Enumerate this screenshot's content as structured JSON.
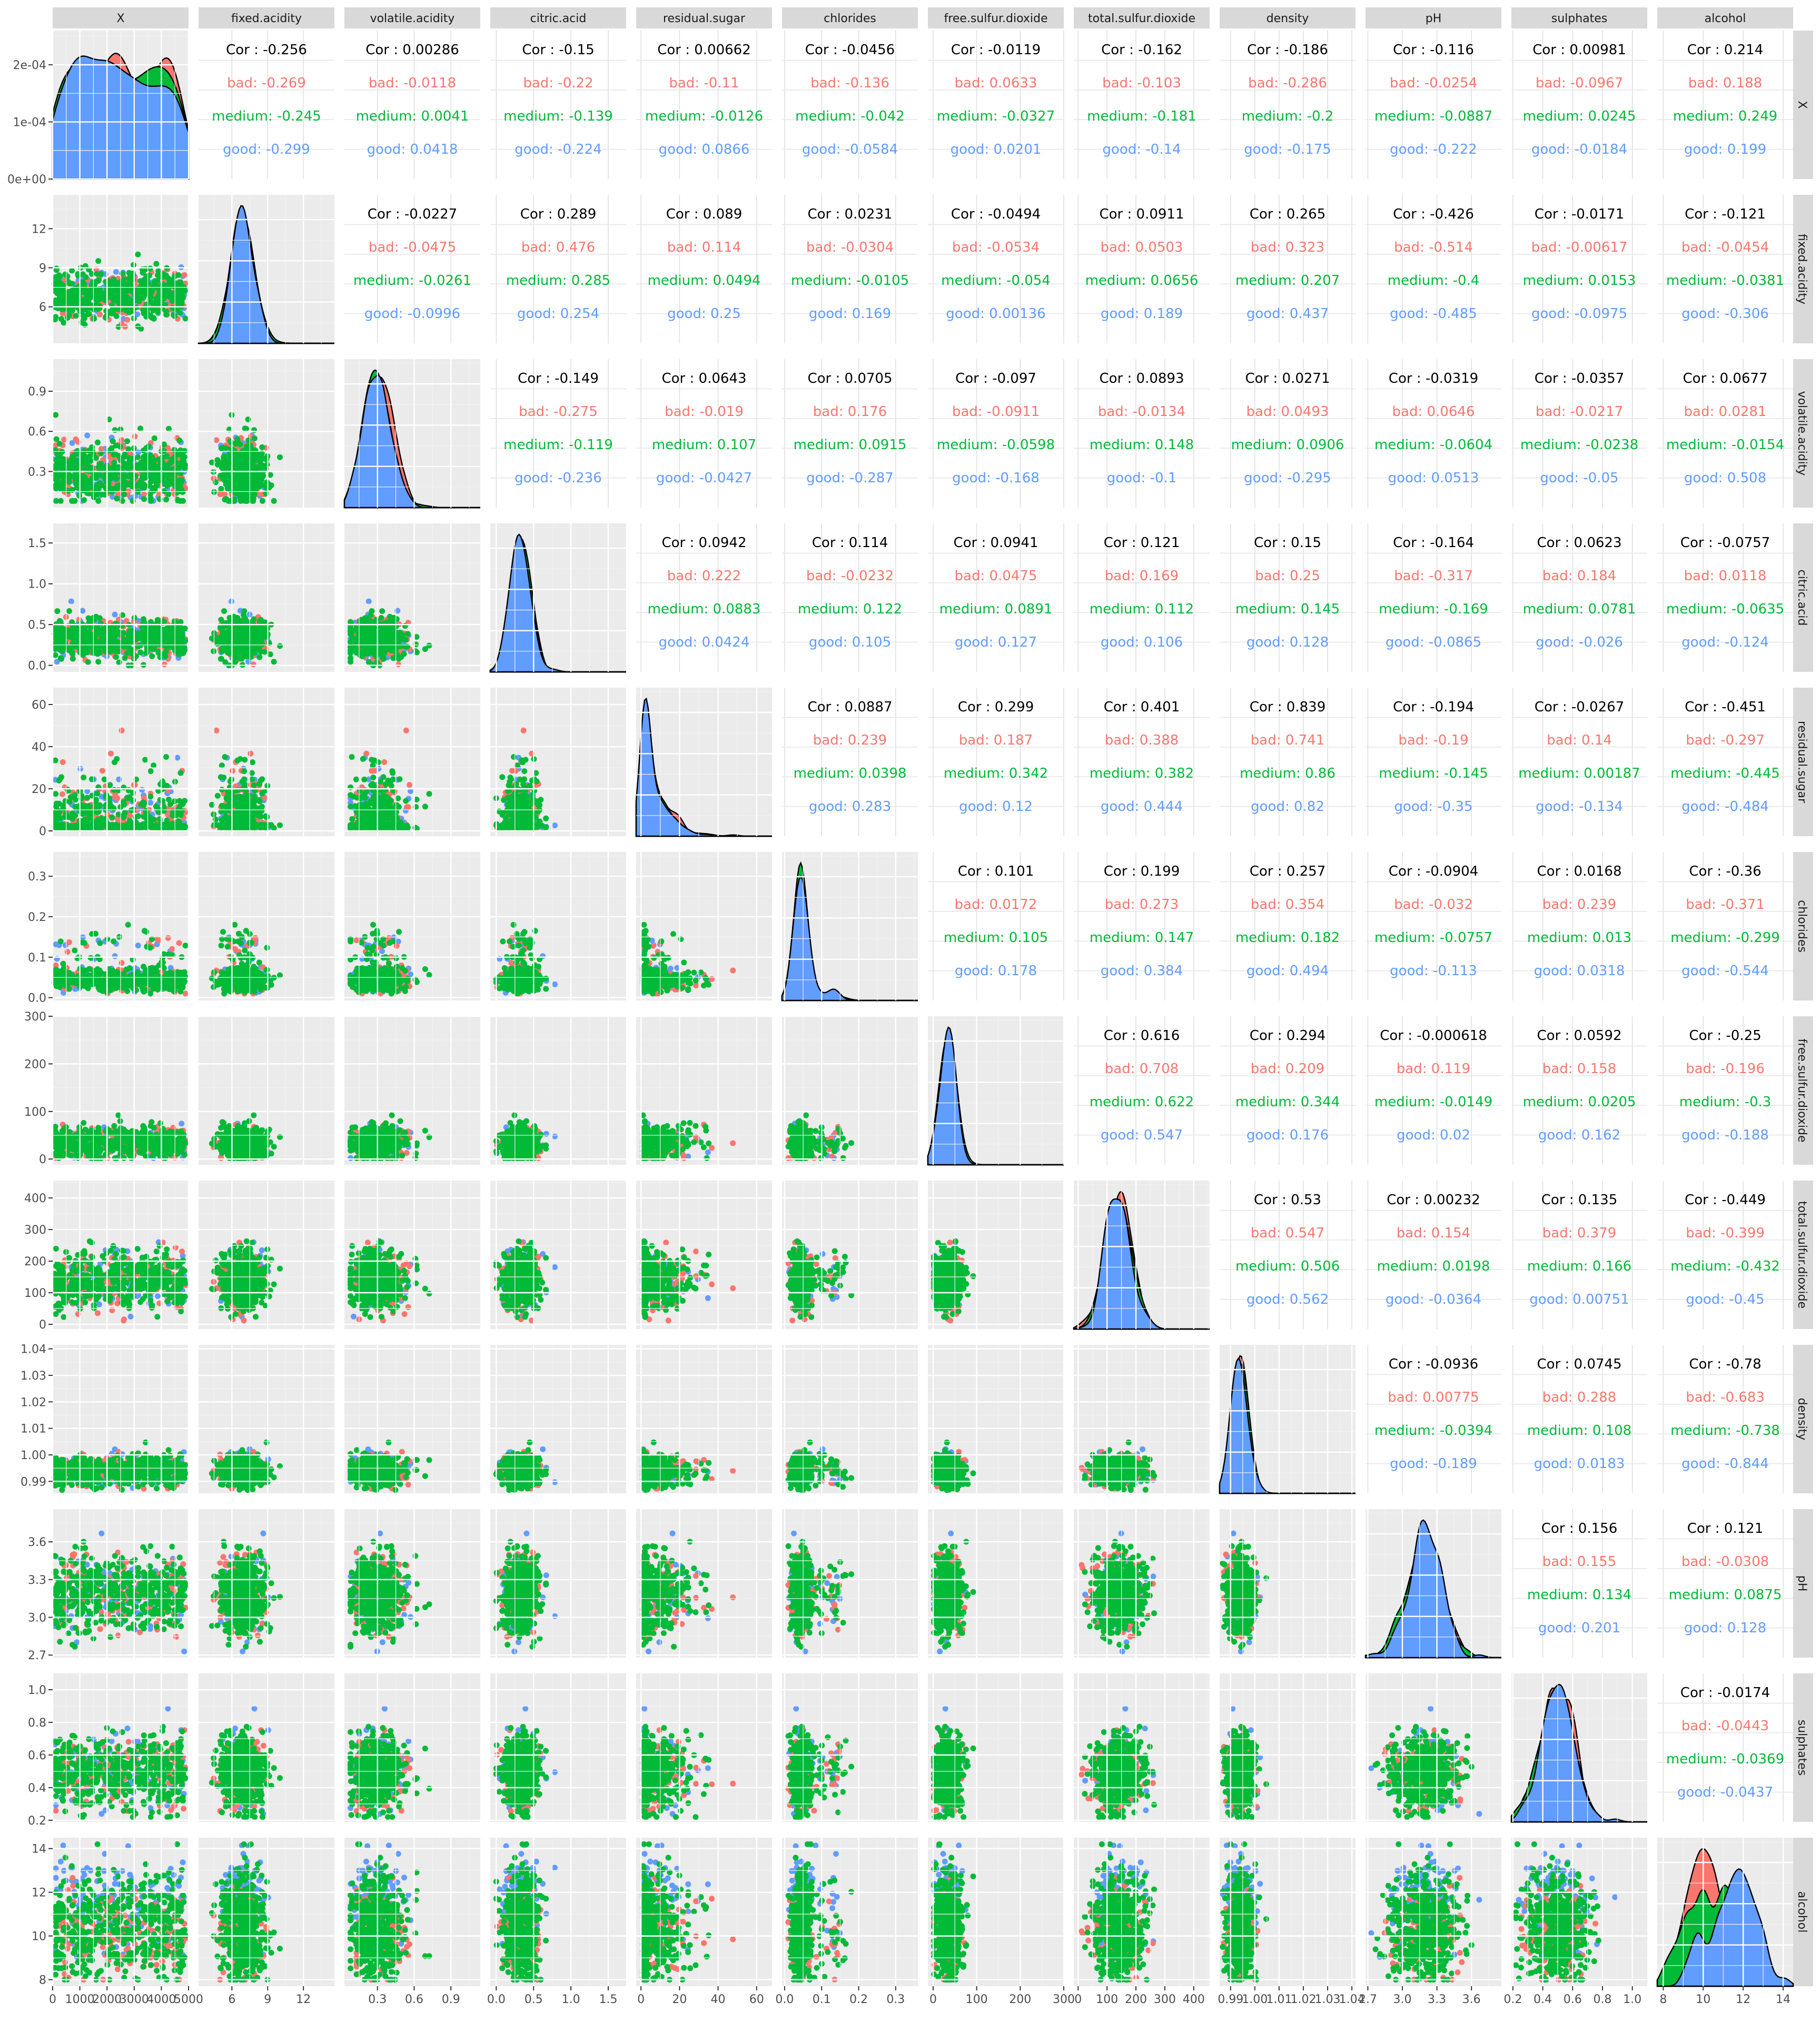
{
  "chart_data": {
    "type": "scatter",
    "subtype": "pairs-matrix",
    "variables": [
      "X",
      "fixed.acidity",
      "volatile.acidity",
      "citric.acid",
      "residual.sugar",
      "chlorides",
      "free.sulfur.dioxide",
      "total.sulfur.dioxide",
      "density",
      "pH",
      "sulphates",
      "alcohol"
    ],
    "groups": [
      {
        "name": "bad",
        "color": "#F8766D"
      },
      {
        "name": "medium",
        "color": "#00BA38"
      },
      {
        "name": "good",
        "color": "#619CFF"
      }
    ],
    "correlation_prefixes": [
      "Cor : ",
      "bad: ",
      "medium: ",
      "good: "
    ],
    "correlations": [
      {
        "row": "X",
        "col": "fixed.acidity",
        "overall": "-0.256",
        "bad": "-0.269",
        "medium": "-0.245",
        "good": "-0.299"
      },
      {
        "row": "X",
        "col": "volatile.acidity",
        "overall": "0.00286",
        "bad": "-0.0118",
        "medium": "0.0041",
        "good": "0.0418"
      },
      {
        "row": "X",
        "col": "citric.acid",
        "overall": "-0.15",
        "bad": "-0.22",
        "medium": "-0.139",
        "good": "-0.224"
      },
      {
        "row": "X",
        "col": "residual.sugar",
        "overall": "0.00662",
        "bad": "-0.11",
        "medium": "-0.0126",
        "good": "0.0866"
      },
      {
        "row": "X",
        "col": "chlorides",
        "overall": "-0.0456",
        "bad": "-0.136",
        "medium": "-0.042",
        "good": "-0.0584"
      },
      {
        "row": "X",
        "col": "free.sulfur.dioxide",
        "overall": "-0.0119",
        "bad": "0.0633",
        "medium": "-0.0327",
        "good": "0.0201"
      },
      {
        "row": "X",
        "col": "total.sulfur.dioxide",
        "overall": "-0.162",
        "bad": "-0.103",
        "medium": "-0.181",
        "good": "-0.14"
      },
      {
        "row": "X",
        "col": "density",
        "overall": "-0.186",
        "bad": "-0.286",
        "medium": "-0.2",
        "good": "-0.175"
      },
      {
        "row": "X",
        "col": "pH",
        "overall": "-0.116",
        "bad": "-0.0254",
        "medium": "-0.0887",
        "good": "-0.222"
      },
      {
        "row": "X",
        "col": "sulphates",
        "overall": "0.00981",
        "bad": "-0.0967",
        "medium": "0.0245",
        "good": "-0.0184"
      },
      {
        "row": "X",
        "col": "alcohol",
        "overall": "0.214",
        "bad": "0.188",
        "medium": "0.249",
        "good": "0.199"
      },
      {
        "row": "fixed.acidity",
        "col": "volatile.acidity",
        "overall": "-0.0227",
        "bad": "-0.0475",
        "medium": "-0.0261",
        "good": "-0.0996"
      },
      {
        "row": "fixed.acidity",
        "col": "citric.acid",
        "overall": "0.289",
        "bad": "0.476",
        "medium": "0.285",
        "good": "0.254"
      },
      {
        "row": "fixed.acidity",
        "col": "residual.sugar",
        "overall": "0.089",
        "bad": "0.114",
        "medium": "0.0494",
        "good": "0.25"
      },
      {
        "row": "fixed.acidity",
        "col": "chlorides",
        "overall": "0.0231",
        "bad": "-0.0304",
        "medium": "-0.0105",
        "good": "0.169"
      },
      {
        "row": "fixed.acidity",
        "col": "free.sulfur.dioxide",
        "overall": "-0.0494",
        "bad": "-0.0534",
        "medium": "-0.054",
        "good": "0.00136"
      },
      {
        "row": "fixed.acidity",
        "col": "total.sulfur.dioxide",
        "overall": "0.0911",
        "bad": "0.0503",
        "medium": "0.0656",
        "good": "0.189"
      },
      {
        "row": "fixed.acidity",
        "col": "density",
        "overall": "0.265",
        "bad": "0.323",
        "medium": "0.207",
        "good": "0.437"
      },
      {
        "row": "fixed.acidity",
        "col": "pH",
        "overall": "-0.426",
        "bad": "-0.514",
        "medium": "-0.4",
        "good": "-0.485"
      },
      {
        "row": "fixed.acidity",
        "col": "sulphates",
        "overall": "-0.0171",
        "bad": "-0.00617",
        "medium": "0.0153",
        "good": "-0.0975"
      },
      {
        "row": "fixed.acidity",
        "col": "alcohol",
        "overall": "-0.121",
        "bad": "-0.0454",
        "medium": "-0.0381",
        "good": "-0.306"
      },
      {
        "row": "volatile.acidity",
        "col": "citric.acid",
        "overall": "-0.149",
        "bad": "-0.275",
        "medium": "-0.119",
        "good": "-0.236"
      },
      {
        "row": "volatile.acidity",
        "col": "residual.sugar",
        "overall": "0.0643",
        "bad": "-0.019",
        "medium": "0.107",
        "good": "-0.0427"
      },
      {
        "row": "volatile.acidity",
        "col": "chlorides",
        "overall": "0.0705",
        "bad": "0.176",
        "medium": "0.0915",
        "good": "-0.287"
      },
      {
        "row": "volatile.acidity",
        "col": "free.sulfur.dioxide",
        "overall": "-0.097",
        "bad": "-0.0911",
        "medium": "-0.0598",
        "good": "-0.168"
      },
      {
        "row": "volatile.acidity",
        "col": "total.sulfur.dioxide",
        "overall": "0.0893",
        "bad": "-0.0134",
        "medium": "0.148",
        "good": "-0.1"
      },
      {
        "row": "volatile.acidity",
        "col": "density",
        "overall": "0.0271",
        "bad": "0.0493",
        "medium": "0.0906",
        "good": "-0.295"
      },
      {
        "row": "volatile.acidity",
        "col": "pH",
        "overall": "-0.0319",
        "bad": "0.0646",
        "medium": "-0.0604",
        "good": "0.0513"
      },
      {
        "row": "volatile.acidity",
        "col": "sulphates",
        "overall": "-0.0357",
        "bad": "-0.0217",
        "medium": "-0.0238",
        "good": "-0.05"
      },
      {
        "row": "volatile.acidity",
        "col": "alcohol",
        "overall": "0.0677",
        "bad": "0.0281",
        "medium": "-0.0154",
        "good": "0.508"
      },
      {
        "row": "citric.acid",
        "col": "residual.sugar",
        "overall": "0.0942",
        "bad": "0.222",
        "medium": "0.0883",
        "good": "0.0424"
      },
      {
        "row": "citric.acid",
        "col": "chlorides",
        "overall": "0.114",
        "bad": "-0.0232",
        "medium": "0.122",
        "good": "0.105"
      },
      {
        "row": "citric.acid",
        "col": "free.sulfur.dioxide",
        "overall": "0.0941",
        "bad": "0.0475",
        "medium": "0.0891",
        "good": "0.127"
      },
      {
        "row": "citric.acid",
        "col": "total.sulfur.dioxide",
        "overall": "0.121",
        "bad": "0.169",
        "medium": "0.112",
        "good": "0.106"
      },
      {
        "row": "citric.acid",
        "col": "density",
        "overall": "0.15",
        "bad": "0.25",
        "medium": "0.145",
        "good": "0.128"
      },
      {
        "row": "citric.acid",
        "col": "pH",
        "overall": "-0.164",
        "bad": "-0.317",
        "medium": "-0.169",
        "good": "-0.0865"
      },
      {
        "row": "citric.acid",
        "col": "sulphates",
        "overall": "0.0623",
        "bad": "0.184",
        "medium": "0.0781",
        "good": "-0.026"
      },
      {
        "row": "citric.acid",
        "col": "alcohol",
        "overall": "-0.0757",
        "bad": "0.0118",
        "medium": "-0.0635",
        "good": "-0.124"
      },
      {
        "row": "residual.sugar",
        "col": "chlorides",
        "overall": "0.0887",
        "bad": "0.239",
        "medium": "0.0398",
        "good": "0.283"
      },
      {
        "row": "residual.sugar",
        "col": "free.sulfur.dioxide",
        "overall": "0.299",
        "bad": "0.187",
        "medium": "0.342",
        "good": "0.12"
      },
      {
        "row": "residual.sugar",
        "col": "total.sulfur.dioxide",
        "overall": "0.401",
        "bad": "0.388",
        "medium": "0.382",
        "good": "0.444"
      },
      {
        "row": "residual.sugar",
        "col": "density",
        "overall": "0.839",
        "bad": "0.741",
        "medium": "0.86",
        "good": "0.82"
      },
      {
        "row": "residual.sugar",
        "col": "pH",
        "overall": "-0.194",
        "bad": "-0.19",
        "medium": "-0.145",
        "good": "-0.35"
      },
      {
        "row": "residual.sugar",
        "col": "sulphates",
        "overall": "-0.0267",
        "bad": "0.14",
        "medium": "0.00187",
        "good": "-0.134"
      },
      {
        "row": "residual.sugar",
        "col": "alcohol",
        "overall": "-0.451",
        "bad": "-0.297",
        "medium": "-0.445",
        "good": "-0.484"
      },
      {
        "row": "chlorides",
        "col": "free.sulfur.dioxide",
        "overall": "0.101",
        "bad": "0.0172",
        "medium": "0.105",
        "good": "0.178"
      },
      {
        "row": "chlorides",
        "col": "total.sulfur.dioxide",
        "overall": "0.199",
        "bad": "0.273",
        "medium": "0.147",
        "good": "0.384"
      },
      {
        "row": "chlorides",
        "col": "density",
        "overall": "0.257",
        "bad": "0.354",
        "medium": "0.182",
        "good": "0.494"
      },
      {
        "row": "chlorides",
        "col": "pH",
        "overall": "-0.0904",
        "bad": "-0.032",
        "medium": "-0.0757",
        "good": "-0.113"
      },
      {
        "row": "chlorides",
        "col": "sulphates",
        "overall": "0.0168",
        "bad": "0.239",
        "medium": "0.013",
        "good": "0.0318"
      },
      {
        "row": "chlorides",
        "col": "alcohol",
        "overall": "-0.36",
        "bad": "-0.371",
        "medium": "-0.299",
        "good": "-0.544"
      },
      {
        "row": "free.sulfur.dioxide",
        "col": "total.sulfur.dioxide",
        "overall": "0.616",
        "bad": "0.708",
        "medium": "0.622",
        "good": "0.547"
      },
      {
        "row": "free.sulfur.dioxide",
        "col": "density",
        "overall": "0.294",
        "bad": "0.209",
        "medium": "0.344",
        "good": "0.176"
      },
      {
        "row": "free.sulfur.dioxide",
        "col": "pH",
        "overall": "-0.000618",
        "bad": "0.119",
        "medium": "-0.0149",
        "good": "0.02"
      },
      {
        "row": "free.sulfur.dioxide",
        "col": "sulphates",
        "overall": "0.0592",
        "bad": "0.158",
        "medium": "0.0205",
        "good": "0.162"
      },
      {
        "row": "free.sulfur.dioxide",
        "col": "alcohol",
        "overall": "-0.25",
        "bad": "-0.196",
        "medium": "-0.3",
        "good": "-0.188"
      },
      {
        "row": "total.sulfur.dioxide",
        "col": "density",
        "overall": "0.53",
        "bad": "0.547",
        "medium": "0.506",
        "good": "0.562"
      },
      {
        "row": "total.sulfur.dioxide",
        "col": "pH",
        "overall": "0.00232",
        "bad": "0.154",
        "medium": "0.0198",
        "good": "-0.0364"
      },
      {
        "row": "total.sulfur.dioxide",
        "col": "sulphates",
        "overall": "0.135",
        "bad": "0.379",
        "medium": "0.166",
        "good": "0.00751"
      },
      {
        "row": "total.sulfur.dioxide",
        "col": "alcohol",
        "overall": "-0.449",
        "bad": "-0.399",
        "medium": "-0.432",
        "good": "-0.45"
      },
      {
        "row": "density",
        "col": "pH",
        "overall": "-0.0936",
        "bad": "0.00775",
        "medium": "-0.0394",
        "good": "-0.189"
      },
      {
        "row": "density",
        "col": "sulphates",
        "overall": "0.0745",
        "bad": "0.288",
        "medium": "0.108",
        "good": "0.0183"
      },
      {
        "row": "density",
        "col": "alcohol",
        "overall": "-0.78",
        "bad": "-0.683",
        "medium": "-0.738",
        "good": "-0.844"
      },
      {
        "row": "pH",
        "col": "sulphates",
        "overall": "0.156",
        "bad": "0.155",
        "medium": "0.134",
        "good": "0.201"
      },
      {
        "row": "pH",
        "col": "alcohol",
        "overall": "0.121",
        "bad": "-0.0308",
        "medium": "0.0875",
        "good": "0.128"
      },
      {
        "row": "sulphates",
        "col": "alcohol",
        "overall": "-0.0174",
        "bad": "-0.0443",
        "medium": "-0.0369",
        "good": "-0.0437"
      }
    ],
    "axes": {
      "X": {
        "range": [
          0,
          5000
        ],
        "ticks": [
          "0",
          "1000",
          "2000",
          "3000",
          "4000",
          "5000"
        ],
        "tick_values": [
          0,
          1000,
          2000,
          3000,
          4000,
          5000
        ],
        "density_ticks": [
          "0e+00",
          "1e-04",
          "2e-04"
        ],
        "density_tick_values": [
          0,
          0.0001,
          0.0002
        ],
        "density_ylim": [
          0,
          0.00026
        ]
      },
      "fixed.acidity": {
        "range": [
          3.2,
          14.6
        ],
        "ticks": [
          "6",
          "9",
          "12"
        ],
        "tick_values": [
          6,
          9,
          12
        ]
      },
      "volatile.acidity": {
        "range": [
          0.03,
          1.14
        ],
        "ticks": [
          "0.3",
          "0.6",
          "0.9"
        ],
        "tick_values": [
          0.3,
          0.6,
          0.9
        ]
      },
      "citric.acid": {
        "range": [
          -0.08,
          1.74
        ],
        "ticks": [
          "0.0",
          "0.5",
          "1.0",
          "1.5"
        ],
        "tick_values": [
          0,
          0.5,
          1.0,
          1.5
        ]
      },
      "residual.sugar": {
        "range": [
          -2.5,
          68
        ],
        "ticks": [
          "0",
          "20",
          "40",
          "60"
        ],
        "tick_values": [
          0,
          20,
          40,
          60
        ]
      },
      "chlorides": {
        "range": [
          -0.007,
          0.36
        ],
        "ticks": [
          "0.0",
          "0.1",
          "0.2",
          "0.3"
        ],
        "tick_values": [
          0,
          0.1,
          0.2,
          0.3
        ]
      },
      "free.sulfur.dioxide": {
        "range": [
          -12,
          300
        ],
        "ticks": [
          "0",
          "100",
          "200",
          "300"
        ],
        "tick_values": [
          0,
          100,
          200,
          300
        ]
      },
      "total.sulfur.dioxide": {
        "range": [
          -15,
          455
        ],
        "ticks": [
          "0",
          "100",
          "200",
          "300",
          "400"
        ],
        "tick_values": [
          0,
          100,
          200,
          300,
          400
        ]
      },
      "density": {
        "range": [
          0.9855,
          1.0415
        ],
        "ticks": [
          "0.99",
          "1.00",
          "1.01",
          "1.02",
          "1.03",
          "1.04"
        ],
        "x_ticks": [
          "0.99",
          "1.00",
          "1.01",
          "1.02",
          "1.03",
          "1.04"
        ],
        "tick_values": [
          0.99,
          1.0,
          1.01,
          1.02,
          1.03,
          1.04
        ]
      },
      "pH": {
        "range": [
          2.68,
          3.86
        ],
        "ticks": [
          "2.7",
          "3.0",
          "3.3",
          "3.6"
        ],
        "tick_values": [
          2.7,
          3.0,
          3.3,
          3.6
        ]
      },
      "sulphates": {
        "range": [
          0.19,
          1.1
        ],
        "ticks": [
          "0.2",
          "0.4",
          "0.6",
          "0.8",
          "1.0"
        ],
        "tick_values": [
          0.2,
          0.4,
          0.6,
          0.8,
          1.0
        ]
      },
      "alcohol": {
        "range": [
          7.7,
          14.5
        ],
        "ticks": [
          "8",
          "10",
          "12",
          "14"
        ],
        "tick_values": [
          8,
          10,
          12,
          14
        ]
      }
    },
    "grid": true,
    "legend": "none"
  }
}
